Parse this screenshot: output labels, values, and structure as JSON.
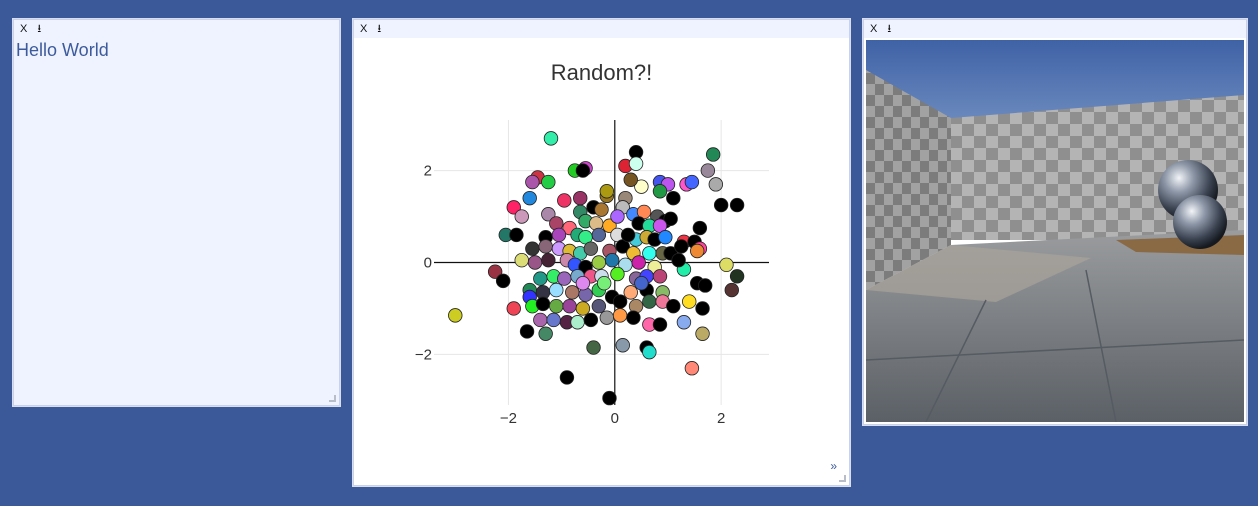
{
  "panes": {
    "close_label": "X",
    "pin_label": "⭳"
  },
  "hello": {
    "text": "Hello World"
  },
  "plot": {
    "expand_label": "»"
  },
  "colors": {
    "background": "#3b5998",
    "pane_header": "#eef3ff",
    "hello_text": "#3d5b9c"
  },
  "chart_data": {
    "type": "scatter",
    "title": "Random?!",
    "xlabel": "",
    "ylabel": "",
    "xlim": [
      -3.4,
      2.9
    ],
    "ylim": [
      -3.1,
      3.1
    ],
    "xticks": [
      -2,
      0,
      2
    ],
    "yticks": [
      -2,
      0,
      2
    ],
    "xtick_labels": [
      "−2",
      "0",
      "2"
    ],
    "ytick_labels": [
      "−2",
      "0",
      "2"
    ],
    "grid": true,
    "points": [
      {
        "x": -1.2,
        "y": 2.7,
        "c": "#33eeaa"
      },
      {
        "x": 0.4,
        "y": 2.4,
        "c": "#000000"
      },
      {
        "x": 1.85,
        "y": 2.35,
        "c": "#228855"
      },
      {
        "x": -0.55,
        "y": 2.05,
        "c": "#cc44cc"
      },
      {
        "x": 0.2,
        "y": 2.1,
        "c": "#dd2233"
      },
      {
        "x": -0.75,
        "y": 2.0,
        "c": "#22cc22"
      },
      {
        "x": -0.6,
        "y": 2.0,
        "c": "#000000"
      },
      {
        "x": 0.4,
        "y": 2.15,
        "c": "#ccffee"
      },
      {
        "x": 1.75,
        "y": 2.0,
        "c": "#998899"
      },
      {
        "x": -1.45,
        "y": 1.85,
        "c": "#cc3344"
      },
      {
        "x": -1.55,
        "y": 1.75,
        "c": "#aa55aa"
      },
      {
        "x": -1.25,
        "y": 1.75,
        "c": "#22cc44"
      },
      {
        "x": 0.5,
        "y": 1.65,
        "c": "#ffffcc"
      },
      {
        "x": 0.3,
        "y": 1.8,
        "c": "#775522"
      },
      {
        "x": 0.85,
        "y": 1.75,
        "c": "#4455ee"
      },
      {
        "x": 1.0,
        "y": 1.7,
        "c": "#bb55ee"
      },
      {
        "x": 1.35,
        "y": 1.7,
        "c": "#ff55cc"
      },
      {
        "x": 1.45,
        "y": 1.75,
        "c": "#4466ff"
      },
      {
        "x": 1.9,
        "y": 1.7,
        "c": "#aaaaaa"
      },
      {
        "x": -1.6,
        "y": 1.4,
        "c": "#2288dd"
      },
      {
        "x": -0.65,
        "y": 1.4,
        "c": "#993366"
      },
      {
        "x": -0.15,
        "y": 1.45,
        "c": "#997722"
      },
      {
        "x": -0.15,
        "y": 1.55,
        "c": "#aa9911"
      },
      {
        "x": 0.2,
        "y": 1.4,
        "c": "#998877"
      },
      {
        "x": 0.85,
        "y": 1.55,
        "c": "#229944"
      },
      {
        "x": 1.1,
        "y": 1.4,
        "c": "#000000"
      },
      {
        "x": 2.0,
        "y": 1.25,
        "c": "#000000"
      },
      {
        "x": 2.3,
        "y": 1.25,
        "c": "#000000"
      },
      {
        "x": -1.9,
        "y": 1.2,
        "c": "#ff2266"
      },
      {
        "x": -1.75,
        "y": 1.0,
        "c": "#cc99bb"
      },
      {
        "x": -1.25,
        "y": 1.05,
        "c": "#aa88aa"
      },
      {
        "x": -0.65,
        "y": 1.1,
        "c": "#338866"
      },
      {
        "x": -0.4,
        "y": 1.2,
        "c": "#000000"
      },
      {
        "x": -0.25,
        "y": 1.15,
        "c": "#aa7733"
      },
      {
        "x": 0.15,
        "y": 1.2,
        "c": "#bbbbbb"
      },
      {
        "x": 0.35,
        "y": 1.05,
        "c": "#4488ff"
      },
      {
        "x": 0.55,
        "y": 1.1,
        "c": "#ff8855"
      },
      {
        "x": 0.8,
        "y": 1.0,
        "c": "#555555"
      },
      {
        "x": 0.95,
        "y": 0.9,
        "c": "#000000"
      },
      {
        "x": 1.05,
        "y": 0.95,
        "c": "#000000"
      },
      {
        "x": 1.6,
        "y": 0.75,
        "c": "#000000"
      },
      {
        "x": -1.1,
        "y": 0.85,
        "c": "#aa4466"
      },
      {
        "x": -0.85,
        "y": 0.75,
        "c": "#ff6677"
      },
      {
        "x": -0.55,
        "y": 0.9,
        "c": "#33aa66"
      },
      {
        "x": -0.35,
        "y": 0.85,
        "c": "#ddbb88"
      },
      {
        "x": -0.1,
        "y": 0.8,
        "c": "#ffaa22"
      },
      {
        "x": 0.45,
        "y": 0.85,
        "c": "#000000"
      },
      {
        "x": 0.65,
        "y": 0.8,
        "c": "#22dd99"
      },
      {
        "x": 0.85,
        "y": 0.8,
        "c": "#cc55ee"
      },
      {
        "x": -2.05,
        "y": 0.6,
        "c": "#227766"
      },
      {
        "x": -1.85,
        "y": 0.6,
        "c": "#000000"
      },
      {
        "x": -1.3,
        "y": 0.55,
        "c": "#000000"
      },
      {
        "x": -1.05,
        "y": 0.6,
        "c": "#aa44bb"
      },
      {
        "x": -0.7,
        "y": 0.6,
        "c": "#22aa77"
      },
      {
        "x": -0.55,
        "y": 0.55,
        "c": "#33ee88"
      },
      {
        "x": -0.3,
        "y": 0.6,
        "c": "#556699"
      },
      {
        "x": 0.05,
        "y": 0.6,
        "c": "#dddddd"
      },
      {
        "x": 0.4,
        "y": 0.5,
        "c": "#44ccdd"
      },
      {
        "x": 0.6,
        "y": 0.55,
        "c": "#ccaa33"
      },
      {
        "x": 0.75,
        "y": 0.5,
        "c": "#000000"
      },
      {
        "x": 1.3,
        "y": 0.45,
        "c": "#ee3344"
      },
      {
        "x": 1.5,
        "y": 0.45,
        "c": "#000000"
      },
      {
        "x": 1.6,
        "y": 0.3,
        "c": "#ff4499"
      },
      {
        "x": -1.55,
        "y": 0.3,
        "c": "#333333"
      },
      {
        "x": -1.3,
        "y": 0.35,
        "c": "#886677"
      },
      {
        "x": -1.05,
        "y": 0.3,
        "c": "#cc99ff"
      },
      {
        "x": -0.85,
        "y": 0.25,
        "c": "#ddbb33"
      },
      {
        "x": -0.65,
        "y": 0.2,
        "c": "#44ccaa"
      },
      {
        "x": -0.45,
        "y": 0.3,
        "c": "#666666"
      },
      {
        "x": -0.1,
        "y": 0.25,
        "c": "#aa5566"
      },
      {
        "x": 0.15,
        "y": 0.35,
        "c": "#000000"
      },
      {
        "x": 0.35,
        "y": 0.2,
        "c": "#eebb33"
      },
      {
        "x": 0.65,
        "y": 0.2,
        "c": "#33ffee"
      },
      {
        "x": 0.9,
        "y": 0.2,
        "c": "#666644"
      },
      {
        "x": 1.05,
        "y": 0.2,
        "c": "#000000"
      },
      {
        "x": 1.25,
        "y": 0.35,
        "c": "#000000"
      },
      {
        "x": 1.55,
        "y": 0.25,
        "c": "#ee8833"
      },
      {
        "x": -1.75,
        "y": 0.05,
        "c": "#dddd77"
      },
      {
        "x": -1.5,
        "y": 0.0,
        "c": "#995588"
      },
      {
        "x": -1.25,
        "y": 0.05,
        "c": "#442233"
      },
      {
        "x": -0.9,
        "y": 0.05,
        "c": "#cc88aa"
      },
      {
        "x": -0.75,
        "y": -0.05,
        "c": "#3355ff"
      },
      {
        "x": -0.55,
        "y": -0.1,
        "c": "#000000"
      },
      {
        "x": -0.3,
        "y": 0.0,
        "c": "#99cc44"
      },
      {
        "x": -0.05,
        "y": 0.05,
        "c": "#2277aa"
      },
      {
        "x": 0.2,
        "y": -0.05,
        "c": "#aaddee"
      },
      {
        "x": 0.45,
        "y": 0.0,
        "c": "#cc22aa"
      },
      {
        "x": 0.75,
        "y": -0.1,
        "c": "#eeee99"
      },
      {
        "x": 1.3,
        "y": -0.15,
        "c": "#22eeaa"
      },
      {
        "x": 2.1,
        "y": -0.05,
        "c": "#dddd66"
      },
      {
        "x": -2.25,
        "y": -0.2,
        "c": "#993344"
      },
      {
        "x": -2.1,
        "y": -0.4,
        "c": "#000000"
      },
      {
        "x": -1.4,
        "y": -0.35,
        "c": "#229988"
      },
      {
        "x": -1.15,
        "y": -0.3,
        "c": "#33ee66"
      },
      {
        "x": -0.95,
        "y": -0.35,
        "c": "#9966bb"
      },
      {
        "x": -0.7,
        "y": -0.3,
        "c": "#77aacc"
      },
      {
        "x": -0.45,
        "y": -0.3,
        "c": "#ee5588"
      },
      {
        "x": -0.25,
        "y": -0.3,
        "c": "#ccddee"
      },
      {
        "x": 0.05,
        "y": -0.25,
        "c": "#55ee22"
      },
      {
        "x": 0.4,
        "y": -0.35,
        "c": "#886699"
      },
      {
        "x": 0.6,
        "y": -0.3,
        "c": "#4444ff"
      },
      {
        "x": 0.85,
        "y": -0.3,
        "c": "#bb4477"
      },
      {
        "x": 1.55,
        "y": -0.45,
        "c": "#000000"
      },
      {
        "x": 1.7,
        "y": -0.5,
        "c": "#000000"
      },
      {
        "x": 2.3,
        "y": -0.3,
        "c": "#223322"
      },
      {
        "x": -1.6,
        "y": -0.6,
        "c": "#228855"
      },
      {
        "x": -1.35,
        "y": -0.65,
        "c": "#333344"
      },
      {
        "x": -1.1,
        "y": -0.6,
        "c": "#99ddff"
      },
      {
        "x": -0.8,
        "y": -0.65,
        "c": "#aa7766"
      },
      {
        "x": -0.55,
        "y": -0.7,
        "c": "#7766aa"
      },
      {
        "x": -0.3,
        "y": -0.6,
        "c": "#33cc55"
      },
      {
        "x": -0.05,
        "y": -0.75,
        "c": "#000000"
      },
      {
        "x": 0.3,
        "y": -0.65,
        "c": "#ffaa77"
      },
      {
        "x": 0.6,
        "y": -0.6,
        "c": "#000000"
      },
      {
        "x": 0.9,
        "y": -0.65,
        "c": "#88bb66"
      },
      {
        "x": 2.2,
        "y": -0.6,
        "c": "#553333"
      },
      {
        "x": -1.6,
        "y": -0.75,
        "c": "#3333ff"
      },
      {
        "x": -1.9,
        "y": -1.0,
        "c": "#ee4455"
      },
      {
        "x": -1.55,
        "y": -0.95,
        "c": "#22ee22"
      },
      {
        "x": -1.35,
        "y": -0.9,
        "c": "#000000"
      },
      {
        "x": -1.1,
        "y": -0.95,
        "c": "#66aa44"
      },
      {
        "x": -0.85,
        "y": -0.95,
        "c": "#994499"
      },
      {
        "x": -0.6,
        "y": -1.0,
        "c": "#ccaa22"
      },
      {
        "x": -0.3,
        "y": -0.95,
        "c": "#555577"
      },
      {
        "x": 0.1,
        "y": -0.85,
        "c": "#000000"
      },
      {
        "x": 0.4,
        "y": -0.95,
        "c": "#aa8866"
      },
      {
        "x": 0.65,
        "y": -0.85,
        "c": "#336644"
      },
      {
        "x": 0.9,
        "y": -0.85,
        "c": "#ee7799"
      },
      {
        "x": 1.1,
        "y": -0.95,
        "c": "#000000"
      },
      {
        "x": 1.4,
        "y": -0.85,
        "c": "#ffdd22"
      },
      {
        "x": 1.65,
        "y": -1.0,
        "c": "#000000"
      },
      {
        "x": -1.4,
        "y": -1.25,
        "c": "#aa66aa"
      },
      {
        "x": -1.15,
        "y": -1.25,
        "c": "#6677cc"
      },
      {
        "x": -0.9,
        "y": -1.3,
        "c": "#552244"
      },
      {
        "x": -0.7,
        "y": -1.3,
        "c": "#aaeecc"
      },
      {
        "x": -0.45,
        "y": -1.25,
        "c": "#000000"
      },
      {
        "x": -0.15,
        "y": -1.2,
        "c": "#999999"
      },
      {
        "x": 0.1,
        "y": -1.15,
        "c": "#ff9944"
      },
      {
        "x": 0.35,
        "y": -1.2,
        "c": "#000000"
      },
      {
        "x": 0.65,
        "y": -1.35,
        "c": "#ff66aa"
      },
      {
        "x": 0.85,
        "y": -1.35,
        "c": "#000000"
      },
      {
        "x": 1.3,
        "y": -1.3,
        "c": "#88aaee"
      },
      {
        "x": -3.0,
        "y": -1.15,
        "c": "#cccc22"
      },
      {
        "x": -1.65,
        "y": -1.5,
        "c": "#000000"
      },
      {
        "x": -1.3,
        "y": -1.55,
        "c": "#448866"
      },
      {
        "x": -0.4,
        "y": -1.85,
        "c": "#446644"
      },
      {
        "x": 0.15,
        "y": -1.8,
        "c": "#8899aa"
      },
      {
        "x": 0.6,
        "y": -1.85,
        "c": "#000000"
      },
      {
        "x": 0.65,
        "y": -1.95,
        "c": "#22ddcc"
      },
      {
        "x": 1.65,
        "y": -1.55,
        "c": "#bbaa66"
      },
      {
        "x": 1.45,
        "y": -2.3,
        "c": "#ff8877"
      },
      {
        "x": -0.9,
        "y": -2.5,
        "c": "#000000"
      },
      {
        "x": -0.1,
        "y": -2.95,
        "c": "#000000"
      },
      {
        "x": 0.05,
        "y": 1.0,
        "c": "#aa66ff"
      },
      {
        "x": -0.95,
        "y": 1.35,
        "c": "#ee3366"
      },
      {
        "x": 1.2,
        "y": 0.05,
        "c": "#000000"
      },
      {
        "x": -0.2,
        "y": -0.45,
        "c": "#77ee77"
      },
      {
        "x": 0.5,
        "y": -0.45,
        "c": "#4466cc"
      },
      {
        "x": 0.95,
        "y": 0.55,
        "c": "#2288ff"
      },
      {
        "x": -0.6,
        "y": -0.45,
        "c": "#dd88ee"
      },
      {
        "x": 0.25,
        "y": 0.6,
        "c": "#000000"
      }
    ]
  }
}
